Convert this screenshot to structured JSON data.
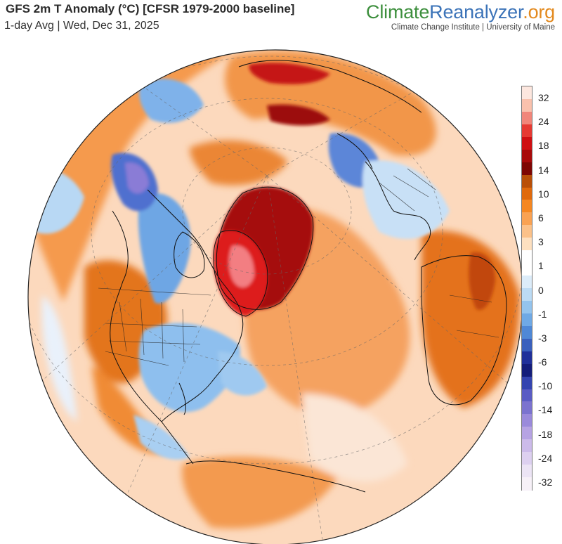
{
  "header": {
    "title": "GFS 2m T Anomaly (°C) [CFSR 1979-2000 baseline]",
    "subtitle": "1-day Avg | Wed, Dec 31, 2025"
  },
  "brand": {
    "logo_part1": "Climate",
    "logo_part2": "Reanalyzer",
    "logo_part3": ".org",
    "tagline": "Climate Change Institute | University of Maine"
  },
  "colorbar": {
    "labels": [
      "32",
      "24",
      "18",
      "14",
      "10",
      "6",
      "3",
      "1",
      "0",
      "-1",
      "-3",
      "-6",
      "-10",
      "-14",
      "-18",
      "-24",
      "-32"
    ],
    "colors": [
      "#fde7df",
      "#f9c1ad",
      "#f1867a",
      "#e63a33",
      "#cf0f12",
      "#a80a0a",
      "#7e0603",
      "#b94f08",
      "#e06a0d",
      "#f58722",
      "#f9a253",
      "#fbc189",
      "#fde0c0",
      "#ffffff",
      "#ffffff",
      "#dcecf9",
      "#bcdbf4",
      "#94c4ee",
      "#6fa9e5",
      "#4f88d6",
      "#3a60bd",
      "#20309a",
      "#141d7a",
      "#3444b0",
      "#5a5cc4",
      "#7b73cf",
      "#9a8adb",
      "#b6a3e3",
      "#ccbbea",
      "#ddd0f0",
      "#ece4f5",
      "#f7f1f8"
    ]
  },
  "map": {
    "projection": "orthographic",
    "region": "Northern Hemisphere centered on North Atlantic",
    "colors": {
      "ocean_warm": "#f7c39a",
      "land_warm": "#e9782a",
      "cold": "#9cc7ee",
      "very_cold": "#3c5cc0",
      "extreme_warm": "#d31414",
      "neutral": "#ffffff"
    }
  }
}
